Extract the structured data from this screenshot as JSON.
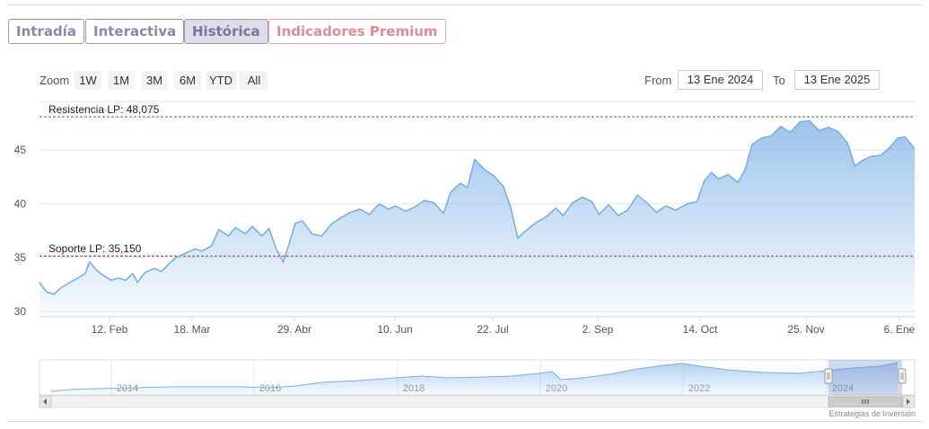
{
  "tabs": [
    {
      "label": "Intradía",
      "active": false
    },
    {
      "label": "Interactiva",
      "active": false
    },
    {
      "label": "Histórica",
      "active": true
    },
    {
      "label": "Indicadores Premium",
      "active": false
    }
  ],
  "range_selector": {
    "zoom_label": "Zoom",
    "buttons": [
      "1W",
      "1M",
      "3M",
      "6M",
      "YTD",
      "All"
    ],
    "from_label": "From",
    "from_value": "13 Ene 2024",
    "to_label": "To",
    "to_value": "13 Ene 2025"
  },
  "credit": "Estrategias de Inversión",
  "colors": {
    "line": "#7cb0e4",
    "resistance": "#2e7d32",
    "support": "#8b1a2b",
    "tab_premium": "#e28c91"
  },
  "chart_data": {
    "type": "area",
    "title": "",
    "xlabel": "",
    "ylabel": "",
    "x_ticks": [
      "12. Feb",
      "18. Mar",
      "29. Abr",
      "10. Jun",
      "22. Jul",
      "2. Sep",
      "14. Oct",
      "25. Nov",
      "6. Ene"
    ],
    "y_ticks": [
      30,
      35,
      40,
      45
    ],
    "ylim": [
      29.5,
      49.5
    ],
    "x_range": [
      "2024-01-13",
      "2025-01-13"
    ],
    "grid": true,
    "series": [
      {
        "values": [
          [
            "2024-01-13",
            32.7
          ],
          [
            "2024-01-16",
            31.8
          ],
          [
            "2024-01-19",
            31.6
          ],
          [
            "2024-01-22",
            32.2
          ],
          [
            "2024-01-25",
            32.6
          ],
          [
            "2024-01-29",
            33.1
          ],
          [
            "2024-02-01",
            33.5
          ],
          [
            "2024-02-03",
            34.6
          ],
          [
            "2024-02-06",
            33.8
          ],
          [
            "2024-02-09",
            33.3
          ],
          [
            "2024-02-12",
            32.9
          ],
          [
            "2024-02-15",
            33.1
          ],
          [
            "2024-02-18",
            32.9
          ],
          [
            "2024-02-21",
            33.5
          ],
          [
            "2024-02-23",
            32.7
          ],
          [
            "2024-02-26",
            33.6
          ],
          [
            "2024-03-01",
            34.0
          ],
          [
            "2024-03-04",
            33.7
          ],
          [
            "2024-03-07",
            34.4
          ],
          [
            "2024-03-10",
            35.0
          ],
          [
            "2024-03-13",
            35.3
          ],
          [
            "2024-03-18",
            35.8
          ],
          [
            "2024-03-21",
            35.6
          ],
          [
            "2024-03-25",
            36.1
          ],
          [
            "2024-03-28",
            37.6
          ],
          [
            "2024-04-01",
            37.0
          ],
          [
            "2024-04-04",
            37.8
          ],
          [
            "2024-04-08",
            37.2
          ],
          [
            "2024-04-11",
            37.9
          ],
          [
            "2024-04-15",
            37.0
          ],
          [
            "2024-04-18",
            37.7
          ],
          [
            "2024-04-21",
            35.8
          ],
          [
            "2024-04-24",
            34.6
          ],
          [
            "2024-04-26",
            36.0
          ],
          [
            "2024-04-29",
            38.2
          ],
          [
            "2024-05-02",
            38.4
          ],
          [
            "2024-05-06",
            37.2
          ],
          [
            "2024-05-10",
            37.0
          ],
          [
            "2024-05-14",
            38.1
          ],
          [
            "2024-05-18",
            38.7
          ],
          [
            "2024-05-22",
            39.2
          ],
          [
            "2024-05-26",
            39.5
          ],
          [
            "2024-05-30",
            39.0
          ],
          [
            "2024-06-03",
            40.0
          ],
          [
            "2024-06-07",
            39.5
          ],
          [
            "2024-06-10",
            39.8
          ],
          [
            "2024-06-14",
            39.3
          ],
          [
            "2024-06-18",
            39.7
          ],
          [
            "2024-06-22",
            40.3
          ],
          [
            "2024-06-26",
            40.1
          ],
          [
            "2024-06-30",
            39.1
          ],
          [
            "2024-07-03",
            41.1
          ],
          [
            "2024-07-07",
            41.9
          ],
          [
            "2024-07-10",
            41.5
          ],
          [
            "2024-07-13",
            44.1
          ],
          [
            "2024-07-17",
            43.2
          ],
          [
            "2024-07-21",
            42.6
          ],
          [
            "2024-07-25",
            41.6
          ],
          [
            "2024-07-28",
            39.7
          ],
          [
            "2024-07-31",
            36.8
          ],
          [
            "2024-08-04",
            37.6
          ],
          [
            "2024-08-08",
            38.3
          ],
          [
            "2024-08-12",
            38.8
          ],
          [
            "2024-08-16",
            39.6
          ],
          [
            "2024-08-19",
            38.9
          ],
          [
            "2024-08-23",
            40.1
          ],
          [
            "2024-08-27",
            40.6
          ],
          [
            "2024-08-31",
            40.2
          ],
          [
            "2024-09-03",
            39.0
          ],
          [
            "2024-09-07",
            39.9
          ],
          [
            "2024-09-11",
            38.9
          ],
          [
            "2024-09-15",
            39.4
          ],
          [
            "2024-09-19",
            40.8
          ],
          [
            "2024-09-23",
            40.1
          ],
          [
            "2024-09-27",
            39.2
          ],
          [
            "2024-10-01",
            39.8
          ],
          [
            "2024-10-05",
            39.4
          ],
          [
            "2024-10-10",
            40.0
          ],
          [
            "2024-10-14",
            40.2
          ],
          [
            "2024-10-17",
            42.1
          ],
          [
            "2024-10-20",
            42.9
          ],
          [
            "2024-10-23",
            42.3
          ],
          [
            "2024-10-27",
            42.7
          ],
          [
            "2024-10-31",
            42.0
          ],
          [
            "2024-11-03",
            43.1
          ],
          [
            "2024-11-06",
            45.5
          ],
          [
            "2024-11-10",
            46.1
          ],
          [
            "2024-11-14",
            46.3
          ],
          [
            "2024-11-18",
            47.2
          ],
          [
            "2024-11-22",
            46.6
          ],
          [
            "2024-11-26",
            47.6
          ],
          [
            "2024-11-30",
            47.7
          ],
          [
            "2024-12-04",
            46.8
          ],
          [
            "2024-12-08",
            47.1
          ],
          [
            "2024-12-12",
            46.7
          ],
          [
            "2024-12-16",
            45.6
          ],
          [
            "2024-12-19",
            43.5
          ],
          [
            "2024-12-22",
            44.0
          ],
          [
            "2024-12-26",
            44.4
          ],
          [
            "2024-12-30",
            44.5
          ],
          [
            "2025-01-02",
            45.1
          ],
          [
            "2025-01-06",
            46.1
          ],
          [
            "2025-01-09",
            46.2
          ],
          [
            "2025-01-13",
            45.1
          ]
        ]
      }
    ],
    "annotations": [
      {
        "label": "Resistencia LP: 48,075",
        "y": 48.075
      },
      {
        "label": "Soporte LP: 35,150",
        "y": 35.15
      }
    ],
    "navigator": {
      "x_labels": [
        "2014",
        "2016",
        "2018",
        "2020",
        "2022",
        "2024"
      ],
      "selected_range": [
        "2024-01-13",
        "2025-01-13"
      ]
    }
  }
}
